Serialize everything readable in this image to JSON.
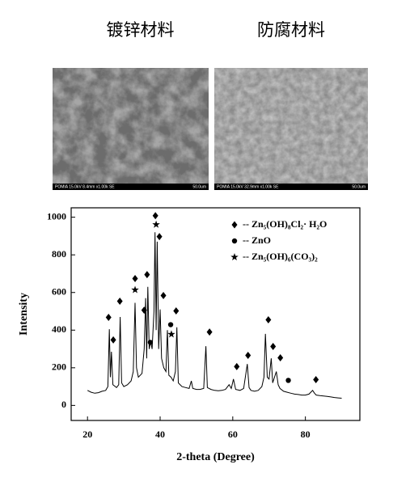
{
  "panels": [
    {
      "title": "镀锌材料",
      "caption": "POMIA 15.0kV 8.4mm x1.00k SE",
      "scale": "50.0um"
    },
    {
      "title": "防腐材料",
      "caption": "POMIA 15.0kV 32.9mm x1.00k SE",
      "scale": "50.0um"
    }
  ],
  "chart_data": {
    "type": "line",
    "xlabel": "2-theta (Degree)",
    "ylabel": "Intensity",
    "xlim": [
      15.5,
      95
    ],
    "ylim": [
      -80,
      1050
    ],
    "xticks": [
      20,
      40,
      60,
      80
    ],
    "yticks": [
      0,
      200,
      400,
      600,
      800,
      1000
    ],
    "series": [
      {
        "color": "#000000",
        "x": [
          20,
          21,
          22,
          23,
          24,
          25,
          25.6,
          26,
          26.3,
          26.6,
          27,
          28,
          28.6,
          29,
          29.4,
          30,
          31,
          32,
          32.6,
          33.1,
          33.5,
          34,
          35,
          35.6,
          36,
          36.3,
          36.6,
          37,
          37.4,
          37.8,
          38.3,
          38.6,
          38.9,
          39.2,
          39.6,
          40,
          40.4,
          41,
          41.6,
          42,
          42.4,
          43,
          43.6,
          44.2,
          44.6,
          45,
          46,
          47,
          48,
          48.6,
          49,
          50,
          51,
          52,
          52.6,
          53,
          54,
          55,
          56,
          57,
          58,
          59,
          59.6,
          60.2,
          60.8,
          62,
          63,
          64,
          64.5,
          65,
          66,
          67,
          68,
          68.6,
          69,
          69.5,
          70,
          70.6,
          71,
          72,
          72.5,
          73,
          74,
          75,
          76,
          77,
          78,
          79,
          80,
          81,
          82,
          82.5,
          83,
          84,
          85,
          86,
          87,
          88,
          89,
          90
        ],
        "values": [
          80,
          70,
          65,
          68,
          75,
          80,
          100,
          405,
          150,
          285,
          110,
          95,
          110,
          470,
          120,
          100,
          110,
          130,
          180,
          545,
          200,
          150,
          170,
          300,
          570,
          250,
          630,
          300,
          340,
          300,
          500,
          920,
          400,
          870,
          300,
          510,
          250,
          200,
          180,
          400,
          160,
          150,
          130,
          180,
          415,
          120,
          100,
          95,
          90,
          130,
          90,
          85,
          85,
          90,
          315,
          95,
          85,
          80,
          78,
          80,
          85,
          110,
          90,
          140,
          85,
          80,
          90,
          220,
          95,
          80,
          75,
          80,
          100,
          150,
          380,
          150,
          140,
          250,
          120,
          180,
          110,
          90,
          75,
          70,
          65,
          60,
          58,
          55,
          55,
          60,
          80,
          65,
          55,
          52,
          50,
          48,
          45,
          42,
          40,
          38
        ]
      }
    ],
    "markers": [
      {
        "name": "-- Zn₅(OH)₈Cl₂· H₂O",
        "marker": "diamond",
        "x": [
          25.8,
          27.1,
          28.9,
          33.1,
          35.6,
          36.4,
          38.7,
          39.8,
          40.9,
          44.4,
          53.6,
          61.1,
          64.2,
          69.8,
          71.1,
          73.1,
          82.9
        ],
        "values": [
          468,
          348,
          554,
          674,
          506,
          695,
          1008,
          897,
          584,
          502,
          390,
          206,
          266,
          455,
          313,
          253,
          137
        ]
      },
      {
        "name": "-- ZnO",
        "marker": "circle",
        "x": [
          37.3,
          42.9,
          75.3
        ],
        "values": [
          335,
          429,
          133
        ]
      },
      {
        "name": "-- Zn₅(OH)₆(CO₃)₂",
        "marker": "star",
        "x": [
          33.1,
          38.9,
          43.1
        ],
        "values": [
          614,
          961,
          378
        ]
      }
    ]
  }
}
